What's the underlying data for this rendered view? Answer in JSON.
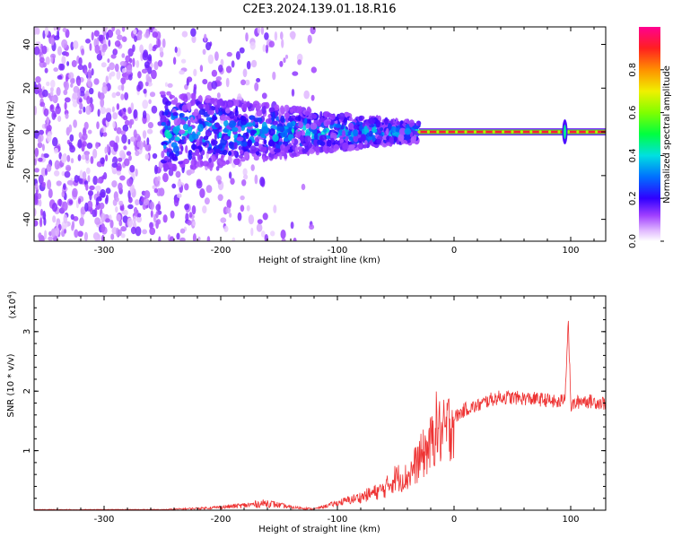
{
  "title": "C2E3.2024.139.01.18.R16",
  "colors": {
    "snr_line": "#ee3333",
    "colormap": [
      "#ffffff",
      "#e8c8ff",
      "#c070ff",
      "#8000ff",
      "#3000ff",
      "#0040ff",
      "#00a0ff",
      "#00e0d0",
      "#00ff60",
      "#80ff00",
      "#e0ff00",
      "#ffc000",
      "#ff6000",
      "#ff0030",
      "#ff0090"
    ]
  },
  "chart_data": [
    {
      "type": "heatmap",
      "xlabel": "Height of straight line (km)",
      "ylabel": "Frequency (Hz)",
      "xlim": [
        -360,
        130
      ],
      "ylim": [
        -50,
        48
      ],
      "x_ticks": [
        -300,
        -200,
        -100,
        0,
        100
      ],
      "y_ticks": [
        -40,
        -20,
        0,
        20,
        40
      ],
      "colorbar": {
        "label": "Normalized spectral amplitude",
        "range": [
          0,
          1
        ],
        "ticks": [
          "0.0",
          "0.2",
          "0.4",
          "0.6",
          "0.8"
        ]
      },
      "carrier": {
        "description_values": "strong narrow line near 0 Hz",
        "frequency_hz": 0,
        "x_start": -30,
        "x_end": 130,
        "amplitude": 1.0
      },
      "noise_band": {
        "x_start": -250,
        "x_end": -30,
        "amplitude": 0.35
      },
      "spike_x": 95
    },
    {
      "type": "line",
      "xlabel": "Height of straight line (km)",
      "ylabel": "SNR (10 * v/v)",
      "y_multiplier": "(x10",
      "y_multiplier_exp": "4",
      "y_multiplier_close": ")",
      "xlim": [
        -360,
        130
      ],
      "ylim": [
        0,
        3.6
      ],
      "x_ticks": [
        -300,
        -200,
        -100,
        0,
        100
      ],
      "y_ticks": [
        1,
        2,
        3
      ],
      "series": [
        {
          "x": [
            -360,
            -300,
            -250,
            -220,
            -200,
            -180,
            -160,
            -140,
            -120,
            -100,
            -80,
            -60,
            -50,
            -40,
            -30,
            -20,
            -15,
            -10,
            0,
            10,
            20,
            30,
            40,
            60,
            80,
            90,
            95,
            98,
            100,
            110,
            120,
            130
          ],
          "values": [
            0.0,
            0.01,
            0.01,
            0.03,
            0.05,
            0.08,
            0.12,
            0.05,
            0.02,
            0.12,
            0.22,
            0.35,
            0.55,
            0.55,
            0.85,
            1.1,
            1.4,
            1.25,
            1.55,
            1.7,
            1.75,
            1.85,
            1.9,
            1.88,
            1.85,
            1.8,
            1.9,
            3.2,
            1.75,
            1.85,
            1.82,
            1.8
          ]
        }
      ]
    }
  ]
}
